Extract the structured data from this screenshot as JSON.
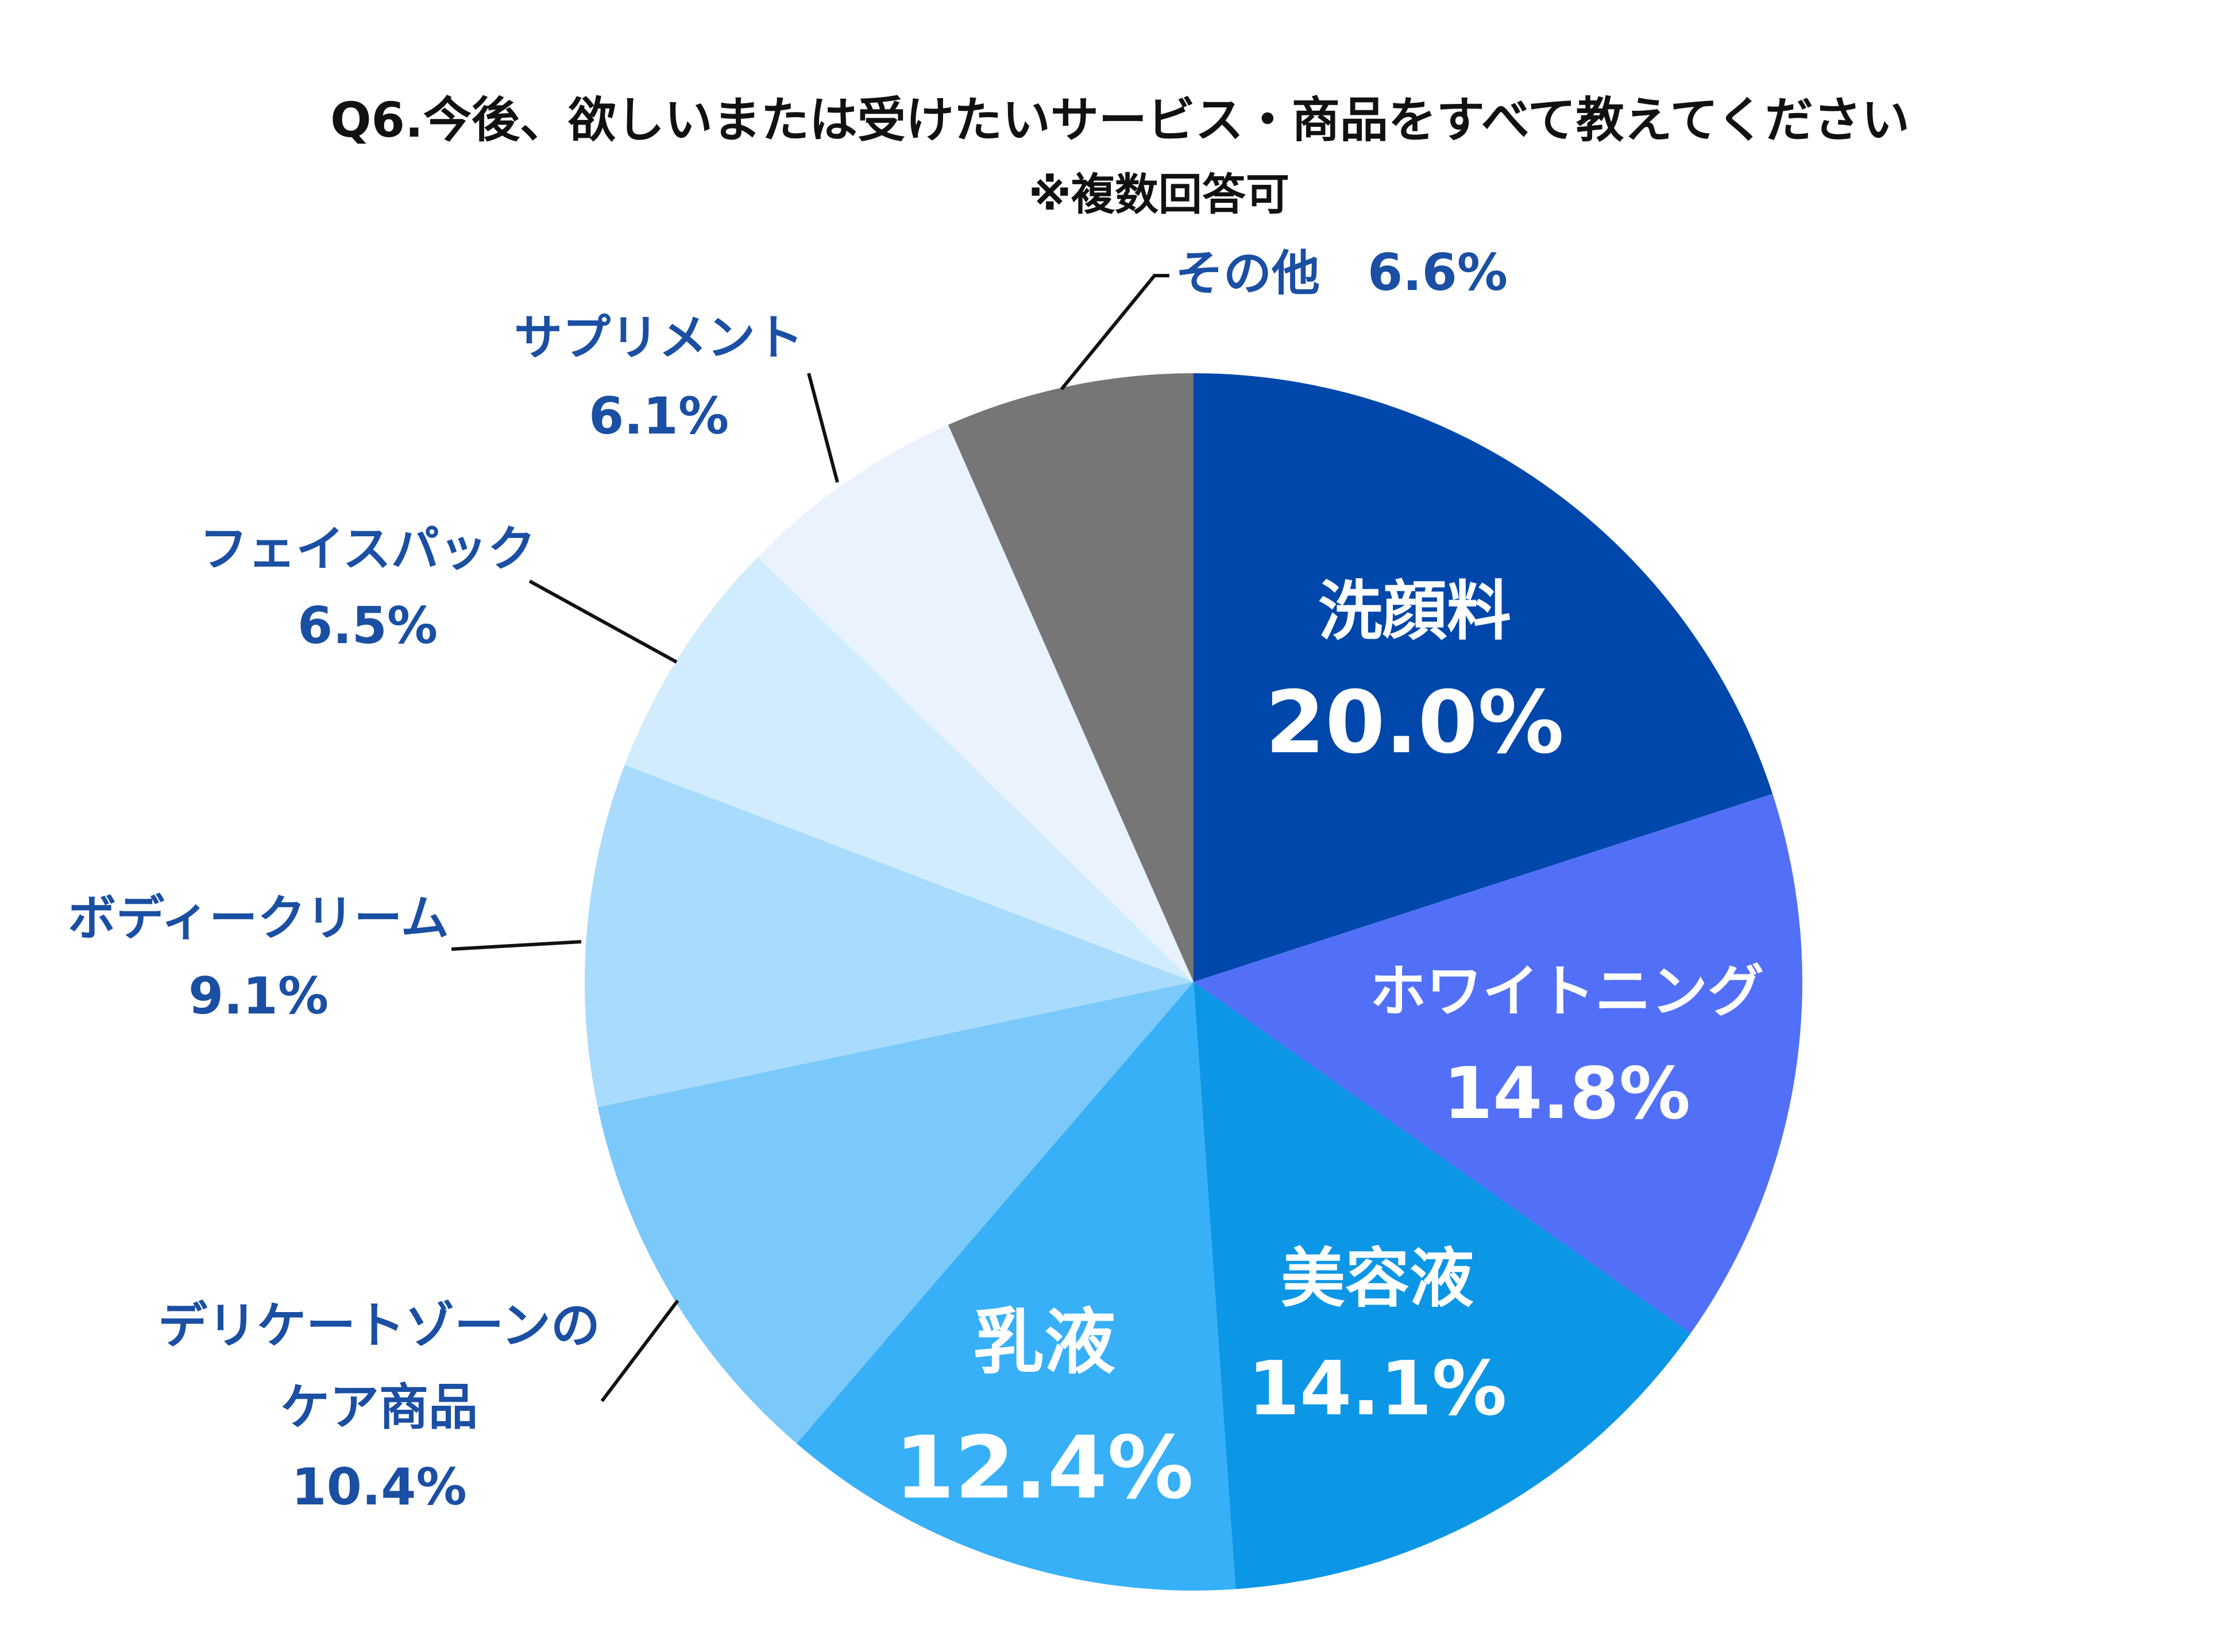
{
  "chart_data": {
    "type": "pie",
    "title": "Q6.今後、欲しいまたは受けたいサービス・商品をすべて教えてください",
    "subtitle": "※複数回答可",
    "unit": "%",
    "slices": [
      {
        "label": "洗顔料",
        "value": 20.0,
        "value_label": "20.0%",
        "color": "#0047ab"
      },
      {
        "label": "ホワイトニング",
        "value": 14.8,
        "value_label": "14.8%",
        "color": "#5270f7"
      },
      {
        "label": "美容液",
        "value": 14.1,
        "value_label": "14.1%",
        "color": "#0c96e6"
      },
      {
        "label": "乳液",
        "value": 12.4,
        "value_label": "12.4%",
        "color": "#37b0f7"
      },
      {
        "label": "デリケートゾーンのケア商品",
        "value": 10.4,
        "value_label": "10.4%",
        "color": "#7bc9fa"
      },
      {
        "label": "ボディークリーム",
        "value": 9.1,
        "value_label": "9.1%",
        "color": "#a8dbfc"
      },
      {
        "label": "フェイスパック",
        "value": 6.5,
        "value_label": "6.5%",
        "color": "#d1ecfd"
      },
      {
        "label": "サプリメント",
        "value": 6.1,
        "value_label": "6.1%",
        "color": "#eaf3fd"
      },
      {
        "label": "その他",
        "value": 6.6,
        "value_label": "6.6%",
        "color": "#767676"
      }
    ]
  }
}
